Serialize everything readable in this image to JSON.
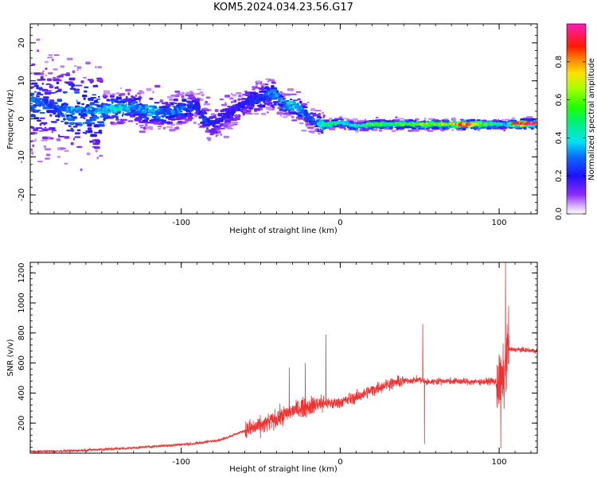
{
  "title": "KOM5.2024.034.23.56.G17",
  "colorbar": {
    "label": "Normalized spectral amplitude",
    "ticks": [
      "0.0",
      "0.2",
      "0.4",
      "0.6",
      "0.8"
    ],
    "tick_values": [
      0.0,
      0.2,
      0.4,
      0.6,
      0.8
    ],
    "range": [
      0,
      1
    ],
    "colormap": "gist_ncar-like (violet-blue-cyan-green-yellow-orange-red-magenta)"
  },
  "chart_data": [
    {
      "type": "heatmap",
      "name": "spectrogram",
      "xlabel": "Height of straight line (km)",
      "ylabel": "Frequency (Hz)",
      "xlim": [
        -195,
        124
      ],
      "ylim": [
        -25,
        25
      ],
      "xticks": [
        -100,
        0,
        100
      ],
      "xtick_labels": [
        "-100",
        "0",
        "100"
      ],
      "yticks": [
        -20,
        -10,
        0,
        10,
        20
      ],
      "ytick_labels": [
        "-20",
        "-10",
        "0",
        "10",
        "20"
      ],
      "ridge": {
        "x": [
          -195,
          -180,
          -170,
          -160,
          -150,
          -140,
          -130,
          -120,
          -110,
          -100,
          -90,
          -85,
          -80,
          -70,
          -60,
          -50,
          -45,
          -40,
          -35,
          -30,
          -25,
          -20,
          -15,
          -10,
          0,
          10,
          20,
          30,
          40,
          50,
          60,
          70,
          80,
          90,
          100,
          105,
          110,
          124
        ],
        "y": [
          5,
          3,
          2.5,
          2,
          2.2,
          2.8,
          3,
          2,
          1.5,
          2.5,
          3.5,
          0,
          -1.5,
          1.5,
          4,
          5.5,
          6.5,
          6,
          3.5,
          3.5,
          2.5,
          0.5,
          -1,
          -1.5,
          -1,
          -2,
          -1.5,
          -1.5,
          -1.5,
          -1.5,
          -1.5,
          -1.5,
          -1.5,
          -1.5,
          -1.5,
          -1.5,
          -1.3,
          -1.3
        ]
      },
      "peak_amplitude": [
        0.3,
        0.25,
        0.35,
        0.3,
        0.35,
        0.4,
        0.3,
        0.35,
        0.3,
        0.3,
        0.2,
        0.25,
        0.2,
        0.2,
        0.2,
        0.25,
        0.3,
        0.35,
        0.3,
        0.4,
        0.35,
        0.25,
        0.3,
        0.5,
        0.45,
        0.4,
        0.6,
        0.5,
        0.55,
        0.6,
        0.6,
        0.75,
        0.9,
        0.6,
        0.45,
        0.35,
        0.95,
        0.95
      ]
    },
    {
      "type": "line",
      "name": "snr",
      "xlabel": "Height of straight line (km)",
      "ylabel": "SNR (v/v)",
      "xlim": [
        -195,
        124
      ],
      "ylim": [
        0,
        1270
      ],
      "xticks": [
        -100,
        0,
        100
      ],
      "xtick_labels": [
        "-100",
        "0",
        "100"
      ],
      "yticks": [
        200,
        400,
        600,
        800,
        1000,
        1200
      ],
      "ytick_labels": [
        "200",
        "400",
        "600",
        "800",
        "1000",
        "1200"
      ],
      "color": "#ee3333",
      "x": [
        -195,
        -170,
        -150,
        -130,
        -110,
        -90,
        -75,
        -60,
        -50,
        -40,
        -30,
        -25,
        -20,
        -15,
        -10,
        -5,
        0,
        10,
        20,
        30,
        40,
        50,
        55,
        60,
        70,
        80,
        90,
        95,
        100,
        103,
        105,
        110,
        124
      ],
      "y": [
        10,
        15,
        25,
        35,
        50,
        65,
        90,
        150,
        180,
        230,
        280,
        300,
        310,
        330,
        330,
        330,
        340,
        370,
        420,
        460,
        480,
        490,
        470,
        480,
        480,
        475,
        475,
        480,
        470,
        480,
        690,
        690,
        680
      ],
      "spikes": [
        {
          "x": -32,
          "y": 570
        },
        {
          "x": -22,
          "y": 600
        },
        {
          "x": -9,
          "y": 790
        },
        {
          "x": 52,
          "y": 860
        },
        {
          "x": 53,
          "y": 60
        },
        {
          "x": 101,
          "y": 30
        },
        {
          "x": 104,
          "y": 1270
        },
        {
          "x": 106,
          "y": 980
        }
      ]
    }
  ]
}
